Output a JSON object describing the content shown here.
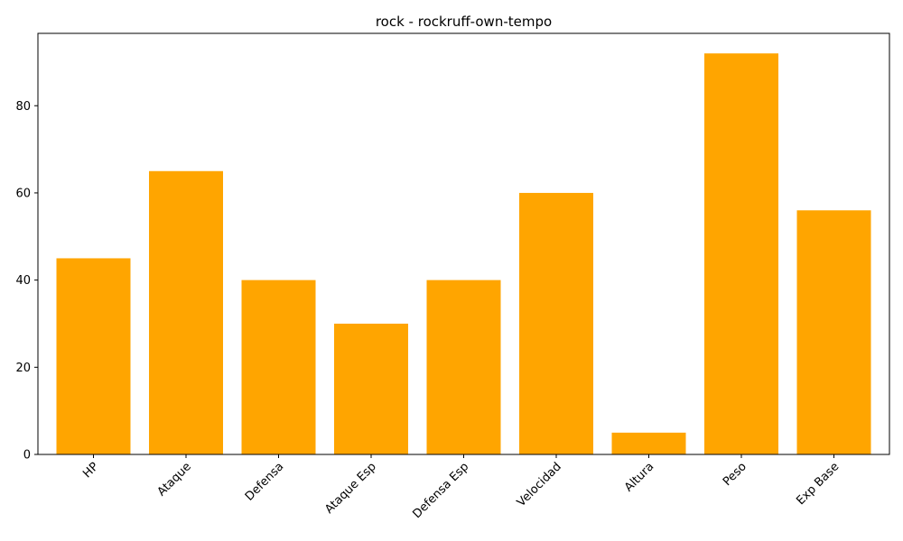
{
  "chart_data": {
    "type": "bar",
    "title": "rock - rockruff-own-tempo",
    "categories": [
      "HP",
      "Ataque",
      "Defensa",
      "Ataque Esp",
      "Defensa Esp",
      "Velocidad",
      "Altura",
      "Peso",
      "Exp Base"
    ],
    "values": [
      45,
      65,
      40,
      30,
      40,
      60,
      5,
      92,
      56
    ],
    "xlabel": "",
    "ylabel": "",
    "ylim": [
      0,
      96.6
    ],
    "yticks": [
      0,
      20,
      40,
      60,
      80
    ],
    "bar_color": "#ffa500",
    "grid": false,
    "legend": "none"
  }
}
